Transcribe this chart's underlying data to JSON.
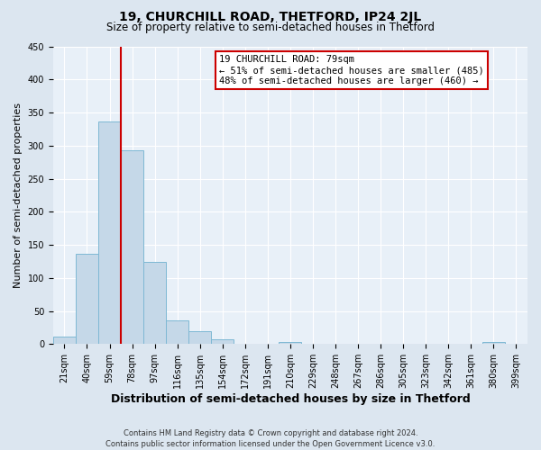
{
  "title": "19, CHURCHILL ROAD, THETFORD, IP24 2JL",
  "subtitle": "Size of property relative to semi-detached houses in Thetford",
  "xlabel": "Distribution of semi-detached houses by size in Thetford",
  "ylabel": "Number of semi-detached properties",
  "bin_labels": [
    "21sqm",
    "40sqm",
    "59sqm",
    "78sqm",
    "97sqm",
    "116sqm",
    "135sqm",
    "154sqm",
    "172sqm",
    "191sqm",
    "210sqm",
    "229sqm",
    "248sqm",
    "267sqm",
    "286sqm",
    "305sqm",
    "323sqm",
    "342sqm",
    "361sqm",
    "380sqm",
    "399sqm"
  ],
  "bin_edges": [
    0,
    1,
    2,
    3,
    4,
    5,
    6,
    7,
    8,
    9,
    10,
    11,
    12,
    13,
    14,
    15,
    16,
    17,
    18,
    19,
    20,
    21
  ],
  "bar_values": [
    12,
    137,
    337,
    293,
    124,
    36,
    19,
    7,
    0,
    0,
    3,
    0,
    0,
    0,
    0,
    0,
    0,
    0,
    0,
    3,
    0
  ],
  "bar_color": "#c5d8e8",
  "bar_edge_color": "#7eb8d4",
  "vline_x": 3,
  "vline_color": "#cc0000",
  "ylim": [
    0,
    450
  ],
  "yticks": [
    0,
    50,
    100,
    150,
    200,
    250,
    300,
    350,
    400,
    450
  ],
  "annotation_title": "19 CHURCHILL ROAD: 79sqm",
  "annotation_line1": "← 51% of semi-detached houses are smaller (485)",
  "annotation_line2": "48% of semi-detached houses are larger (460) →",
  "annotation_box_facecolor": "#ffffff",
  "annotation_box_edgecolor": "#cc0000",
  "footer_line1": "Contains HM Land Registry data © Crown copyright and database right 2024.",
  "footer_line2": "Contains public sector information licensed under the Open Government Licence v3.0.",
  "fig_facecolor": "#dce6f0",
  "axes_facecolor": "#e8f0f8",
  "title_fontsize": 10,
  "subtitle_fontsize": 8.5,
  "ylabel_fontsize": 8,
  "xlabel_fontsize": 9,
  "tick_fontsize": 7,
  "ann_fontsize": 7.5,
  "footer_fontsize": 6
}
